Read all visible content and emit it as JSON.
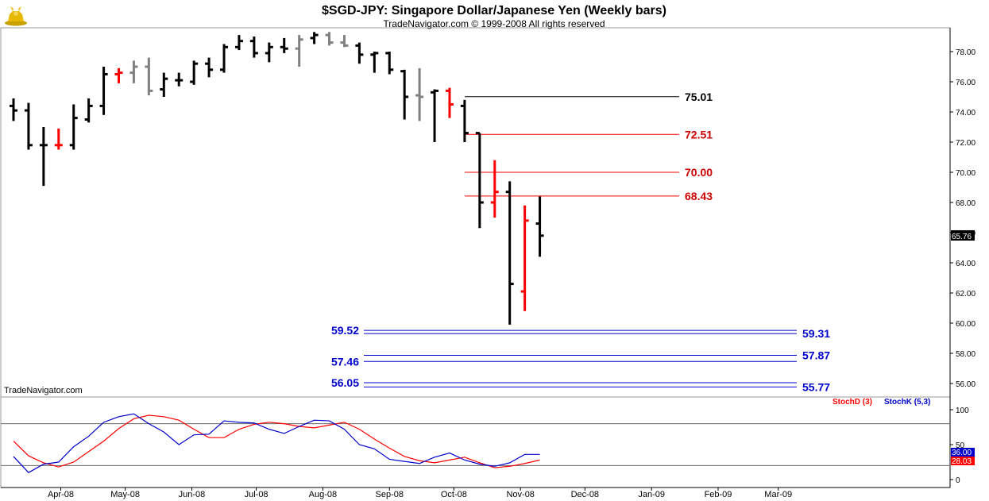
{
  "header": {
    "title": "$SGD-JPY:  Singapore Dollar/Japanese Yen  (Weekly bars)",
    "copyright": "TradeNavigator.com © 1999-2008 All rights reserved",
    "watermark": "TradeNavigator.com"
  },
  "logo": {
    "icon": "bull-logo-icon",
    "color": "#e6b800"
  },
  "colors": {
    "bar_default": "#000000",
    "bar_up_highlight": "#ff0000",
    "bar_grey": "#808080",
    "level_black": "#000000",
    "level_red": "#ff0000",
    "level_blue": "#0000cc",
    "stoch_d": "#ff0000",
    "stoch_k": "#0000cc"
  },
  "price_axis": {
    "labels": [
      "78.00",
      "76.00",
      "74.00",
      "72.00",
      "70.00",
      "68.00",
      "66.00",
      "64.00",
      "62.00",
      "60.00",
      "58.00",
      "56.00"
    ],
    "last_price": "65.76"
  },
  "stoch_axis": {
    "labels": [
      "100",
      "50",
      "0"
    ],
    "stoch_k_value": "36.00",
    "stoch_d_value": "28.03",
    "legend_d": "StochD (3)",
    "legend_k": "StochK (5,3)"
  },
  "time_axis": {
    "labels": [
      "Apr-08",
      "May-08",
      "Jun-08",
      "Jul-08",
      "Aug-08",
      "Sep-08",
      "Oct-08",
      "Nov-08",
      "Dec-08",
      "Jan-09",
      "Feb-09",
      "Mar-09"
    ]
  },
  "levels": {
    "resistance": [
      {
        "value": 75.01,
        "label": "75.01",
        "color": "#000000"
      },
      {
        "value": 72.51,
        "label": "72.51",
        "color": "#ff0000"
      },
      {
        "value": 70.0,
        "label": "70.00",
        "color": "#ff0000"
      },
      {
        "value": 68.43,
        "label": "68.43",
        "color": "#ff0000"
      }
    ],
    "support": [
      {
        "value": 59.52,
        "label": "59.52",
        "side": "left"
      },
      {
        "value": 59.31,
        "label": "59.31",
        "side": "right"
      },
      {
        "value": 57.87,
        "label": "57.87",
        "side": "right"
      },
      {
        "value": 57.46,
        "label": "57.46",
        "side": "left"
      },
      {
        "value": 56.05,
        "label": "56.05",
        "side": "left"
      },
      {
        "value": 55.77,
        "label": "55.77",
        "side": "right"
      }
    ]
  },
  "chart_data": {
    "type": "ohlc",
    "title": "$SGD-JPY:  Singapore Dollar/Japanese Yen  (Weekly bars)",
    "ylim": [
      55.2,
      79.4
    ],
    "x_range": [
      "2008-03-10",
      "2009-03-30"
    ],
    "bars": [
      {
        "date": "2008-03-10",
        "o": 74.4,
        "h": 74.9,
        "l": 73.4,
        "c": 74.1,
        "color": "black"
      },
      {
        "date": "2008-03-17",
        "o": 74.1,
        "h": 74.6,
        "l": 71.5,
        "c": 71.8,
        "color": "black"
      },
      {
        "date": "2008-03-24",
        "o": 71.8,
        "h": 73.0,
        "l": 69.1,
        "c": 71.8,
        "color": "black"
      },
      {
        "date": "2008-03-31",
        "o": 71.8,
        "h": 72.9,
        "l": 71.5,
        "c": 71.8,
        "color": "red"
      },
      {
        "date": "2008-04-07",
        "o": 71.8,
        "h": 74.5,
        "l": 71.5,
        "c": 73.6,
        "color": "black"
      },
      {
        "date": "2008-04-14",
        "o": 73.5,
        "h": 74.9,
        "l": 73.3,
        "c": 74.4,
        "color": "black"
      },
      {
        "date": "2008-04-21",
        "o": 74.4,
        "h": 77.0,
        "l": 73.8,
        "c": 76.5,
        "color": "black"
      },
      {
        "date": "2008-04-28",
        "o": 76.5,
        "h": 76.9,
        "l": 75.9,
        "c": 76.6,
        "color": "red"
      },
      {
        "date": "2008-05-05",
        "o": 76.6,
        "h": 77.4,
        "l": 75.9,
        "c": 77.0,
        "color": "grey"
      },
      {
        "date": "2008-05-12",
        "o": 77.0,
        "h": 77.6,
        "l": 75.1,
        "c": 75.4,
        "color": "grey"
      },
      {
        "date": "2008-05-19",
        "o": 75.5,
        "h": 76.6,
        "l": 75.0,
        "c": 76.2,
        "color": "black"
      },
      {
        "date": "2008-05-26",
        "o": 76.1,
        "h": 76.6,
        "l": 75.7,
        "c": 76.1,
        "color": "black"
      },
      {
        "date": "2008-06-02",
        "o": 76.0,
        "h": 77.4,
        "l": 75.8,
        "c": 77.2,
        "color": "black"
      },
      {
        "date": "2008-06-09",
        "o": 77.2,
        "h": 77.6,
        "l": 76.3,
        "c": 76.8,
        "color": "black"
      },
      {
        "date": "2008-06-16",
        "o": 76.8,
        "h": 78.5,
        "l": 76.6,
        "c": 78.3,
        "color": "black"
      },
      {
        "date": "2008-06-23",
        "o": 78.3,
        "h": 79.1,
        "l": 78.1,
        "c": 78.7,
        "color": "black"
      },
      {
        "date": "2008-06-30",
        "o": 78.7,
        "h": 79.0,
        "l": 77.6,
        "c": 77.9,
        "color": "black"
      },
      {
        "date": "2008-07-07",
        "o": 77.9,
        "h": 78.6,
        "l": 77.3,
        "c": 78.3,
        "color": "black"
      },
      {
        "date": "2008-07-14",
        "o": 78.3,
        "h": 78.9,
        "l": 77.9,
        "c": 78.2,
        "color": "black"
      },
      {
        "date": "2008-07-21",
        "o": 78.2,
        "h": 79.1,
        "l": 77.0,
        "c": 78.8,
        "color": "grey"
      },
      {
        "date": "2008-07-28",
        "o": 78.9,
        "h": 79.3,
        "l": 78.5,
        "c": 79.1,
        "color": "black"
      },
      {
        "date": "2008-08-04",
        "o": 79.1,
        "h": 79.3,
        "l": 78.4,
        "c": 78.6,
        "color": "grey"
      },
      {
        "date": "2008-08-11",
        "o": 78.6,
        "h": 79.1,
        "l": 78.3,
        "c": 78.4,
        "color": "grey"
      },
      {
        "date": "2008-08-18",
        "o": 78.4,
        "h": 78.6,
        "l": 77.2,
        "c": 77.8,
        "color": "black"
      },
      {
        "date": "2008-08-25",
        "o": 77.8,
        "h": 78.0,
        "l": 76.6,
        "c": 77.9,
        "color": "black"
      },
      {
        "date": "2008-09-01",
        "o": 77.9,
        "h": 78.0,
        "l": 76.5,
        "c": 76.8,
        "color": "black"
      },
      {
        "date": "2008-09-08",
        "o": 76.7,
        "h": 76.8,
        "l": 73.5,
        "c": 75.0,
        "color": "black"
      },
      {
        "date": "2008-09-15",
        "o": 75.1,
        "h": 76.9,
        "l": 73.4,
        "c": 75.0,
        "color": "grey"
      },
      {
        "date": "2008-09-22",
        "o": 75.3,
        "h": 75.5,
        "l": 72.0,
        "c": 75.4,
        "color": "black"
      },
      {
        "date": "2008-09-29",
        "o": 75.4,
        "h": 75.6,
        "l": 73.6,
        "c": 74.5,
        "color": "red"
      },
      {
        "date": "2008-10-06",
        "o": 74.4,
        "h": 74.8,
        "l": 72.0,
        "c": 72.6,
        "color": "black"
      },
      {
        "date": "2008-10-13",
        "o": 72.6,
        "h": 72.6,
        "l": 66.3,
        "c": 68.0,
        "color": "black"
      },
      {
        "date": "2008-10-20",
        "o": 68.0,
        "h": 70.8,
        "l": 67.0,
        "c": 68.7,
        "color": "red"
      },
      {
        "date": "2008-10-27",
        "o": 68.7,
        "h": 69.4,
        "l": 59.9,
        "c": 62.6,
        "color": "black"
      },
      {
        "date": "2008-11-03",
        "o": 62.1,
        "h": 67.8,
        "l": 60.8,
        "c": 66.8,
        "color": "red"
      },
      {
        "date": "2008-11-10",
        "o": 66.6,
        "h": 68.4,
        "l": 64.4,
        "c": 65.8,
        "color": "black"
      }
    ],
    "levels": [
      75.01,
      72.51,
      70.0,
      68.43,
      59.52,
      59.31,
      57.87,
      57.46,
      56.05,
      55.77
    ],
    "stochastic": {
      "ylim": [
        0,
        100
      ],
      "reference_lines": [
        80,
        20
      ],
      "series": [
        {
          "name": "StochD (3)",
          "color": "#ff0000",
          "values": [
            55,
            34,
            24,
            18,
            25,
            40,
            55,
            73,
            87,
            92,
            90,
            85,
            72,
            60,
            60,
            72,
            79,
            82,
            80,
            76,
            74,
            78,
            82,
            72,
            58,
            45,
            33,
            27,
            24,
            28,
            32,
            24,
            17,
            19,
            23,
            28
          ]
        },
        {
          "name": "StochK (5,3)",
          "color": "#0000cc",
          "values": [
            33,
            10,
            22,
            25,
            47,
            62,
            82,
            90,
            94,
            80,
            68,
            50,
            64,
            65,
            84,
            82,
            81,
            72,
            66,
            76,
            85,
            84,
            72,
            50,
            44,
            29,
            26,
            23,
            32,
            38,
            28,
            22,
            19,
            24,
            36,
            36
          ]
        }
      ]
    }
  }
}
